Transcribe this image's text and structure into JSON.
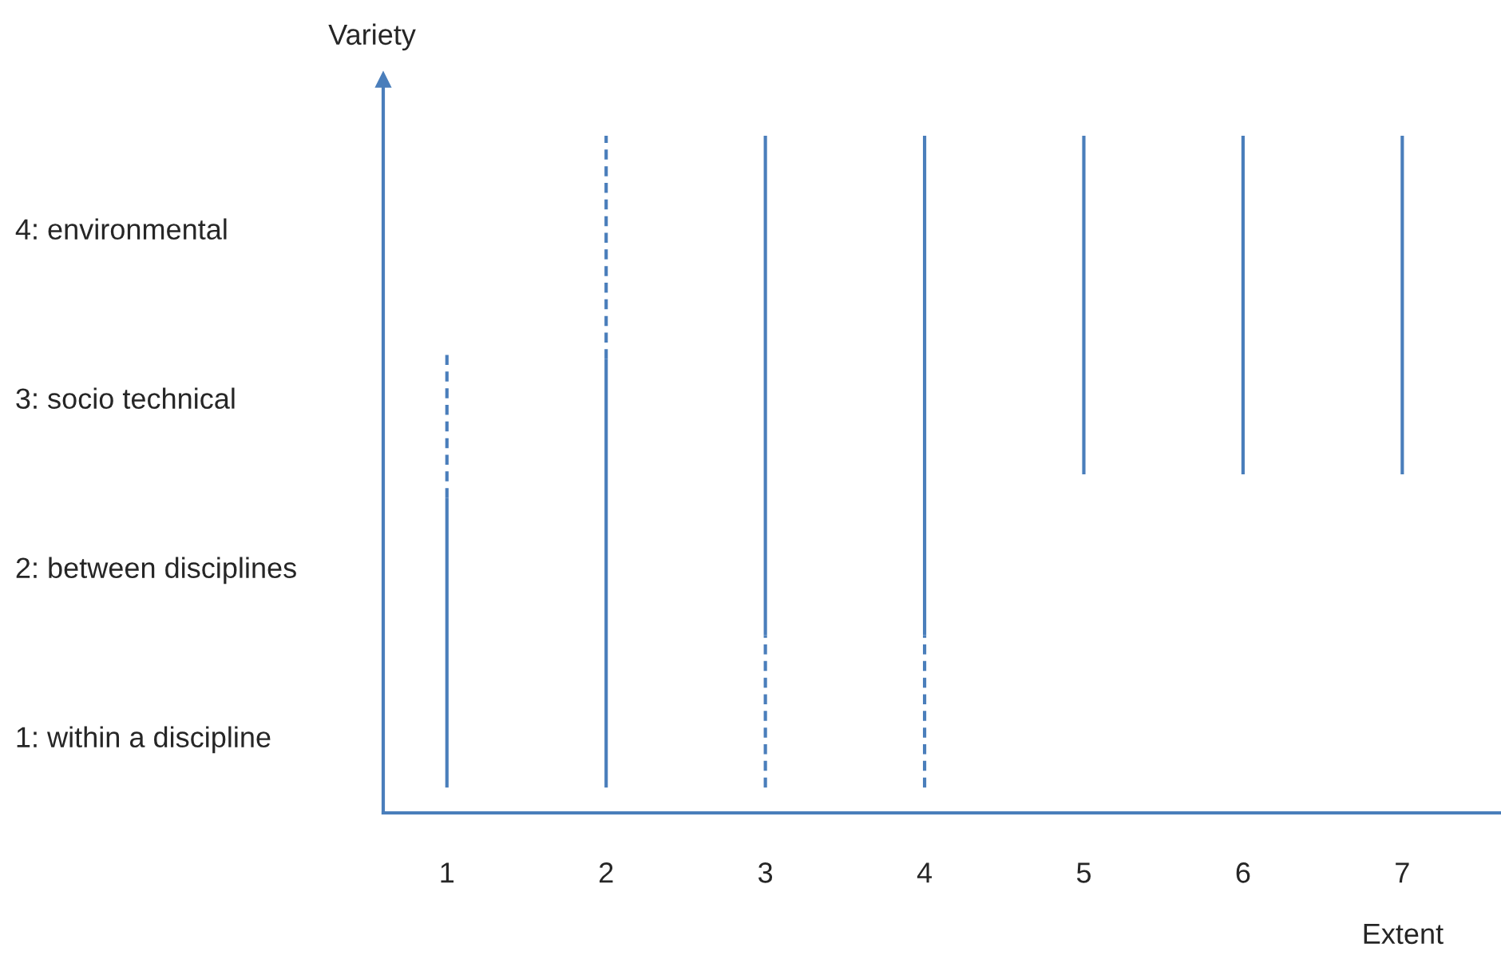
{
  "chart_data": {
    "type": "line",
    "xlabel": "Extent",
    "ylabel": "Variety",
    "xlim": [
      0.6,
      7.61
    ],
    "xticks": [
      1,
      2,
      3,
      4,
      5,
      6,
      7
    ],
    "ylim": [
      0.55,
      4.88
    ],
    "yticks": [
      {
        "value": 1,
        "label": "1: within a discipline"
      },
      {
        "value": 2,
        "label": "2: between disciplines"
      },
      {
        "value": 3,
        "label": "3: socio technical"
      },
      {
        "value": 4,
        "label": "4: environmental"
      }
    ],
    "grid": false,
    "legend": false,
    "marker": "none",
    "series": [
      {
        "x": [
          1,
          1
        ],
        "values": [
          0.7,
          2.41
        ],
        "color": "#4a7ebb",
        "line_style": "solid"
      },
      {
        "x": [
          1,
          1
        ],
        "values": [
          2.41,
          3.27
        ],
        "color": "#4a7ebb",
        "line_style": "dashed"
      },
      {
        "x": [
          2,
          2
        ],
        "values": [
          0.7,
          3.23
        ],
        "color": "#4a7ebb",
        "line_style": "solid"
      },
      {
        "x": [
          2,
          2
        ],
        "values": [
          3.23,
          4.55
        ],
        "color": "#4a7ebb",
        "line_style": "dashed"
      },
      {
        "x": [
          3,
          3
        ],
        "values": [
          0.7,
          1.6
        ],
        "color": "#4a7ebb",
        "line_style": "dashed"
      },
      {
        "x": [
          3,
          3
        ],
        "values": [
          1.6,
          4.55
        ],
        "color": "#4a7ebb",
        "line_style": "solid"
      },
      {
        "x": [
          4,
          4
        ],
        "values": [
          0.7,
          1.6
        ],
        "color": "#4a7ebb",
        "line_style": "dashed"
      },
      {
        "x": [
          4,
          4
        ],
        "values": [
          1.6,
          4.55
        ],
        "color": "#4a7ebb",
        "line_style": "solid"
      },
      {
        "x": [
          5,
          5
        ],
        "values": [
          2.55,
          4.55
        ],
        "color": "#4a7ebb",
        "line_style": "solid"
      },
      {
        "x": [
          6,
          6
        ],
        "values": [
          2.55,
          4.55
        ],
        "color": "#4a7ebb",
        "line_style": "solid"
      },
      {
        "x": [
          7,
          7
        ],
        "values": [
          2.55,
          4.55
        ],
        "color": "#4a7ebb",
        "line_style": "solid"
      }
    ]
  }
}
